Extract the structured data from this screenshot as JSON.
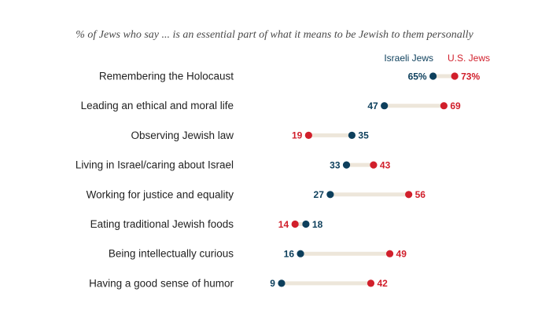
{
  "colors": {
    "israel": "#0d3f5c",
    "us": "#d11f2b",
    "connector": "#ede6da",
    "label": "#222222"
  },
  "chart_data": {
    "type": "dot",
    "subtitle": "% of Jews who say ... is an essential part of what it means to be Jewish to them personally",
    "legend": [
      {
        "key": "israel",
        "label": "Israeli Jews"
      },
      {
        "key": "us",
        "label": "U.S. Jews"
      }
    ],
    "categories": [
      "Remembering the Holocaust",
      "Leading an ethical and moral life",
      "Observing Jewish law",
      "Living in Israel/caring about Israel",
      "Working for justice and equality",
      "Eating traditional Jewish foods",
      "Being intellectually curious",
      "Having a good sense of humor"
    ],
    "series": [
      {
        "name": "Israeli Jews",
        "key": "israel",
        "values": [
          65,
          47,
          35,
          33,
          27,
          18,
          16,
          9
        ]
      },
      {
        "name": "U.S. Jews",
        "key": "us",
        "values": [
          73,
          69,
          19,
          43,
          56,
          14,
          49,
          42
        ]
      }
    ],
    "value_labels": {
      "israel": [
        "65%",
        "47",
        "35",
        "33",
        "27",
        "18",
        "16",
        "9"
      ],
      "us": [
        "73%",
        "69",
        "19",
        "43",
        "56",
        "14",
        "49",
        "42"
      ]
    },
    "xlim": [
      0,
      100
    ]
  }
}
